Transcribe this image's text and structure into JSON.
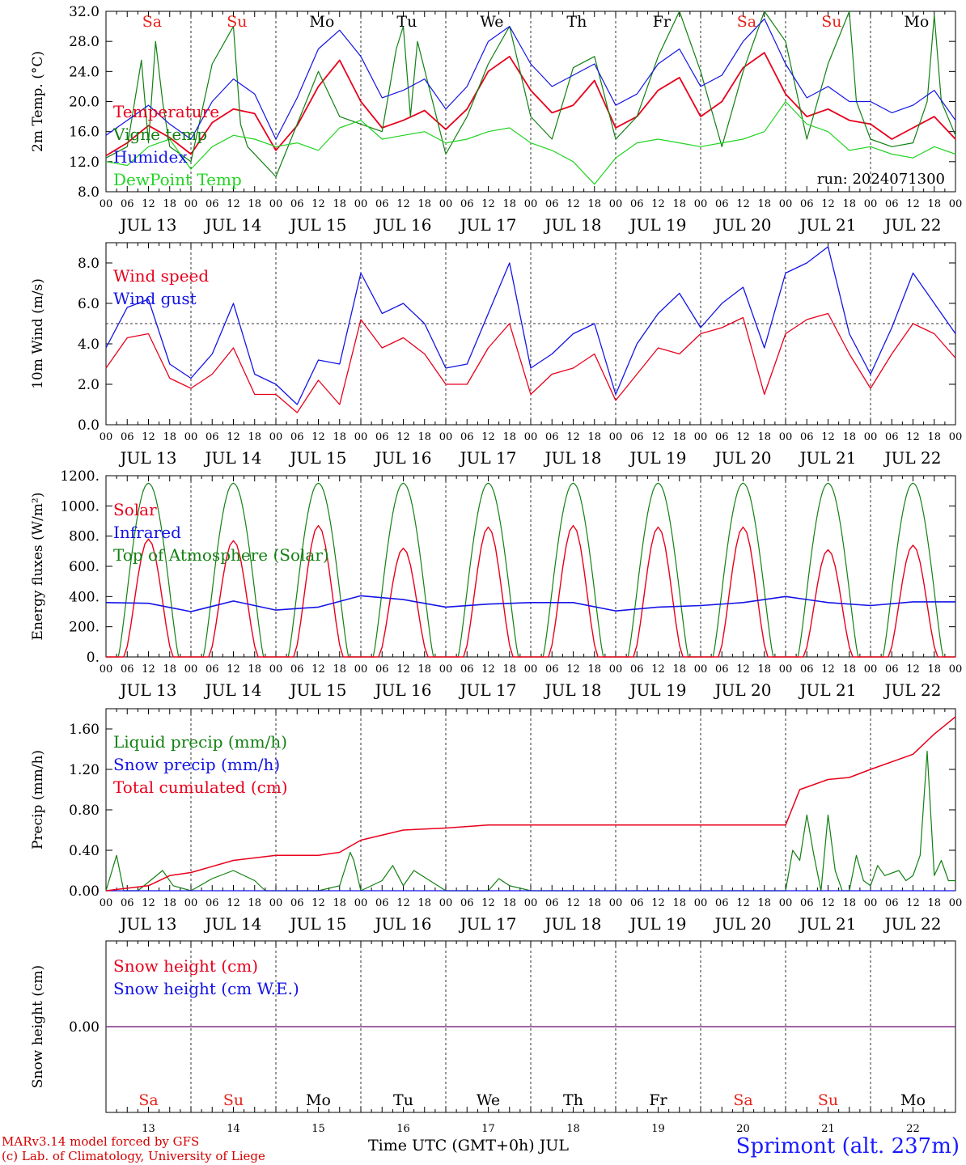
{
  "run_label": "run: 2024071300",
  "days": {
    "abbrev": [
      "Sa",
      "Su",
      "Mo",
      "Tu",
      "We",
      "Th",
      "Fr",
      "Sa",
      "Su",
      "Mo"
    ],
    "weekend_flags": [
      true,
      true,
      false,
      false,
      false,
      false,
      false,
      true,
      true,
      false
    ],
    "dates": [
      "JUL 13",
      "JUL 14",
      "JUL 15",
      "JUL 16",
      "JUL 17",
      "JUL 18",
      "JUL 19",
      "JUL 20",
      "JUL 21",
      "JUL 22"
    ],
    "day_numbers": [
      "13",
      "14",
      "15",
      "16",
      "17",
      "18",
      "19",
      "20",
      "21",
      "22"
    ],
    "hour_ticks": [
      "00",
      "06",
      "12",
      "18"
    ],
    "final_tick": "00"
  },
  "colors": {
    "weekend": "#e8231c",
    "weekday": "#000000",
    "red": "#e8001c",
    "blue": "#1414e6",
    "green": "#128012",
    "lightgreen": "#22d422",
    "purple": "#80308a"
  },
  "footer": {
    "line1": "MARv3.14 model forced by GFS",
    "line2": "(c) Lab. of Climatology, University of Liege",
    "xlabel": "Time UTC (GMT+0h) JUL",
    "station": "Sprimont (alt. 237m)"
  },
  "chart_data": [
    {
      "type": "line",
      "id": "temp",
      "ylabel": "2m Temp. (°C)",
      "ylim": [
        8,
        32
      ],
      "yticks": [
        "8.0",
        "12.0",
        "16.0",
        "20.0",
        "24.0",
        "28.0",
        "32.0"
      ],
      "x_unit": "hours since JUL 13 00 UTC",
      "legend": [
        "Temperature",
        "Vigne temp",
        "Humidex",
        "DewPoint Temp"
      ],
      "series": [
        {
          "name": "Temperature",
          "color": "red",
          "x": [
            0,
            6,
            12,
            18,
            24,
            30,
            36,
            42,
            48,
            54,
            60,
            66,
            72,
            78,
            84,
            90,
            96,
            102,
            108,
            114,
            120,
            126,
            132,
            138,
            144,
            150,
            156,
            162,
            168,
            174,
            180,
            186,
            192,
            198,
            204,
            210,
            216,
            222,
            228,
            234,
            240
          ],
          "values": [
            12.8,
            14.5,
            16.8,
            15.2,
            13.0,
            17.2,
            19.0,
            18.4,
            13.5,
            16.8,
            22.0,
            25.5,
            20.0,
            16.5,
            17.5,
            18.8,
            16.3,
            19.0,
            24.0,
            26.0,
            21.5,
            18.5,
            19.5,
            22.8,
            16.5,
            18.0,
            21.5,
            23.2,
            18.0,
            20.0,
            24.5,
            26.5,
            21.0,
            18.0,
            19.0,
            17.5,
            17.0,
            15.0,
            16.5,
            18.0,
            15.0
          ]
        },
        {
          "name": "Vigne temp",
          "color": "green",
          "x": [
            0,
            6,
            10,
            12,
            14,
            16,
            18,
            24,
            30,
            36,
            38,
            40,
            44,
            48,
            54,
            60,
            66,
            72,
            78,
            82,
            84,
            86,
            88,
            96,
            102,
            108,
            114,
            120,
            126,
            132,
            138,
            144,
            150,
            156,
            162,
            168,
            174,
            180,
            186,
            192,
            198,
            204,
            210,
            212,
            216,
            222,
            228,
            232,
            234,
            236,
            240
          ],
          "values": [
            12.5,
            14.0,
            25.5,
            14.5,
            28.0,
            20.0,
            14.0,
            12.0,
            25.0,
            30.0,
            17.0,
            14.0,
            12.0,
            10.0,
            17.0,
            24.0,
            18.0,
            17.0,
            16.0,
            27.0,
            30.0,
            18.0,
            28.0,
            13.0,
            18.0,
            25.0,
            30.0,
            18.0,
            15.0,
            24.5,
            26.0,
            15.0,
            18.0,
            26.0,
            32.0,
            24.0,
            14.0,
            24.0,
            32.0,
            28.0,
            15.0,
            25.0,
            32.0,
            20.0,
            15.0,
            14.0,
            14.5,
            20.0,
            31.5,
            20.0,
            15.5
          ]
        },
        {
          "name": "Humidex",
          "color": "blue",
          "x": [
            0,
            6,
            12,
            18,
            24,
            30,
            36,
            42,
            48,
            54,
            60,
            66,
            72,
            78,
            84,
            90,
            96,
            102,
            108,
            114,
            120,
            126,
            132,
            138,
            144,
            150,
            156,
            162,
            168,
            174,
            180,
            186,
            192,
            198,
            204,
            210,
            216,
            222,
            228,
            234,
            240
          ],
          "values": [
            15.5,
            17.5,
            19.5,
            17.0,
            15.0,
            20.0,
            23.0,
            21.0,
            15.0,
            20.5,
            27.0,
            29.5,
            26.0,
            20.5,
            21.5,
            23.0,
            19.0,
            22.0,
            28.0,
            30.0,
            25.0,
            22.0,
            23.5,
            25.0,
            19.5,
            21.0,
            25.0,
            27.0,
            22.0,
            23.5,
            28.0,
            31.0,
            25.0,
            20.5,
            22.0,
            20.0,
            20.0,
            18.5,
            19.5,
            21.5,
            17.5
          ]
        },
        {
          "name": "DewPoint Temp",
          "color": "lightgreen",
          "x": [
            0,
            6,
            12,
            18,
            24,
            30,
            36,
            42,
            48,
            54,
            60,
            66,
            72,
            78,
            84,
            90,
            96,
            102,
            108,
            114,
            120,
            126,
            132,
            138,
            144,
            150,
            156,
            162,
            168,
            174,
            180,
            186,
            192,
            198,
            204,
            210,
            216,
            222,
            228,
            234,
            240
          ],
          "values": [
            12.0,
            11.5,
            14.0,
            15.0,
            11.0,
            14.0,
            15.5,
            15.0,
            14.0,
            14.5,
            13.5,
            16.5,
            17.5,
            15.0,
            15.5,
            16.0,
            14.5,
            15.0,
            16.0,
            16.5,
            14.5,
            13.5,
            12.0,
            9.0,
            12.5,
            14.5,
            15.0,
            14.5,
            14.0,
            14.5,
            15.0,
            16.0,
            20.0,
            17.0,
            16.0,
            13.5,
            14.0,
            13.0,
            12.5,
            14.0,
            13.0
          ]
        }
      ]
    },
    {
      "type": "line",
      "id": "wind",
      "ylabel": "10m Wind (m/s)",
      "ylim": [
        0,
        9
      ],
      "yticks": [
        "0.0",
        "2.0",
        "4.0",
        "6.0",
        "8.0"
      ],
      "x_unit": "hours since JUL 13 00 UTC",
      "reference_line": 5.0,
      "legend": [
        "Wind speed",
        "Wind gust"
      ],
      "series": [
        {
          "name": "Wind speed",
          "color": "red",
          "x": [
            0,
            6,
            12,
            18,
            24,
            30,
            36,
            42,
            48,
            54,
            60,
            66,
            72,
            78,
            84,
            90,
            96,
            102,
            108,
            114,
            120,
            126,
            132,
            138,
            144,
            150,
            156,
            162,
            168,
            174,
            180,
            186,
            192,
            198,
            204,
            210,
            216,
            222,
            228,
            234,
            240
          ],
          "values": [
            2.8,
            4.3,
            4.5,
            2.3,
            1.8,
            2.5,
            3.8,
            1.5,
            1.5,
            0.6,
            2.2,
            1.0,
            5.2,
            3.8,
            4.3,
            3.5,
            2.0,
            2.0,
            3.8,
            5.0,
            1.5,
            2.5,
            2.8,
            3.5,
            1.2,
            2.5,
            3.8,
            3.5,
            4.5,
            4.8,
            5.3,
            1.5,
            4.5,
            5.2,
            5.5,
            3.5,
            1.8,
            3.5,
            5.0,
            4.5,
            3.3
          ]
        },
        {
          "name": "Wind gust",
          "color": "blue",
          "x": [
            0,
            6,
            12,
            18,
            24,
            30,
            36,
            42,
            48,
            54,
            60,
            66,
            72,
            78,
            84,
            90,
            96,
            102,
            108,
            114,
            120,
            126,
            132,
            138,
            144,
            150,
            156,
            162,
            168,
            174,
            180,
            186,
            192,
            198,
            204,
            210,
            216,
            222,
            228,
            234,
            240
          ],
          "values": [
            3.8,
            5.8,
            6.2,
            3.0,
            2.3,
            3.5,
            6.0,
            2.5,
            2.0,
            1.0,
            3.2,
            3.0,
            7.5,
            5.5,
            6.0,
            5.0,
            2.8,
            3.0,
            5.5,
            8.0,
            2.8,
            3.5,
            4.5,
            5.0,
            1.5,
            4.0,
            5.5,
            6.5,
            4.8,
            6.0,
            6.8,
            3.8,
            7.5,
            8.0,
            8.8,
            4.5,
            2.5,
            4.8,
            7.5,
            6.0,
            4.5
          ]
        }
      ]
    },
    {
      "type": "line",
      "id": "energy",
      "ylabel": "Energy fluxes (W/m²)",
      "ylim": [
        0,
        1200
      ],
      "yticks": [
        "0.",
        "200.",
        "400.",
        "600.",
        "800.",
        "1000.",
        "1200."
      ],
      "x_unit": "hours since JUL 13 00 UTC",
      "legend": [
        "Solar",
        "Infrared",
        "Top of Atmosphere (Solar)"
      ],
      "daily_peak_toa": 1150,
      "series": [
        {
          "name": "Solar",
          "color": "red",
          "daily_peaks": [
            780,
            770,
            870,
            720,
            860,
            870,
            860,
            860,
            710,
            740
          ]
        },
        {
          "name": "Infrared",
          "color": "blue",
          "x": [
            0,
            12,
            24,
            36,
            48,
            60,
            72,
            84,
            96,
            108,
            120,
            132,
            144,
            156,
            168,
            180,
            192,
            204,
            216,
            228,
            240
          ],
          "values": [
            360,
            355,
            300,
            370,
            310,
            330,
            405,
            380,
            330,
            350,
            360,
            360,
            305,
            330,
            340,
            360,
            400,
            360,
            340,
            365,
            365
          ]
        },
        {
          "name": "Top of Atmosphere (Solar)",
          "color": "green"
        }
      ]
    },
    {
      "type": "line",
      "id": "precip",
      "ylabel": "Precip (mm/h)",
      "ylim": [
        0,
        1.8
      ],
      "yticks": [
        "0.00",
        "0.40",
        "0.80",
        "1.20",
        "1.60"
      ],
      "x_unit": "hours since JUL 13 00 UTC",
      "legend": [
        "Liquid precip (mm/h)",
        "Snow precip (mm/h)",
        "Total cumulated (cm)"
      ],
      "series": [
        {
          "name": "Liquid precip (mm/h)",
          "color": "green",
          "x": [
            0,
            3,
            5,
            9,
            16,
            19,
            24,
            30,
            36,
            42,
            45,
            48,
            60,
            66,
            69,
            70,
            72,
            78,
            81,
            84,
            87,
            96,
            108,
            111,
            114,
            120,
            144,
            168,
            192,
            194,
            196,
            198,
            200,
            202,
            204,
            206,
            208,
            210,
            212,
            214,
            216,
            218,
            220,
            224,
            226,
            228,
            230,
            232,
            234,
            236,
            238,
            240
          ],
          "values": [
            0,
            0.35,
            0,
            0,
            0.2,
            0.05,
            0,
            0.12,
            0.2,
            0.1,
            0,
            0,
            0,
            0.05,
            0.38,
            0.3,
            0,
            0.1,
            0.25,
            0.05,
            0.2,
            0,
            0,
            0.12,
            0.05,
            0,
            0,
            0,
            0,
            0.4,
            0.3,
            0.75,
            0.35,
            0,
            0.75,
            0.2,
            0,
            0,
            0.35,
            0.1,
            0.05,
            0.25,
            0.15,
            0.2,
            0.1,
            0.15,
            0.35,
            1.38,
            0.15,
            0.3,
            0.1,
            0.1
          ]
        },
        {
          "name": "Snow precip (mm/h)",
          "color": "blue",
          "x": [
            0,
            240
          ],
          "values": [
            0,
            0
          ]
        },
        {
          "name": "Total cumulated (cm)",
          "color": "red",
          "x": [
            0,
            12,
            18,
            24,
            36,
            48,
            60,
            66,
            72,
            84,
            96,
            108,
            120,
            144,
            168,
            186,
            192,
            196,
            204,
            210,
            216,
            228,
            234,
            240
          ],
          "values": [
            0,
            0.05,
            0.15,
            0.18,
            0.3,
            0.35,
            0.35,
            0.38,
            0.5,
            0.6,
            0.62,
            0.65,
            0.65,
            0.65,
            0.65,
            0.65,
            0.65,
            1.0,
            1.1,
            1.12,
            1.2,
            1.35,
            1.55,
            1.72
          ]
        }
      ]
    },
    {
      "type": "line",
      "id": "snow",
      "ylabel": "Snow height (cm)",
      "ylim": [
        -1,
        1
      ],
      "yticks": [
        "0.00"
      ],
      "x_unit": "hours since JUL 13 00 UTC",
      "legend": [
        "Snow height (cm)",
        "Snow height (cm W.E.)"
      ],
      "series": [
        {
          "name": "Snow height (cm)",
          "color": "red",
          "x": [
            0,
            240
          ],
          "values": [
            0,
            0
          ]
        },
        {
          "name": "Snow height (cm W.E.)",
          "color": "blue",
          "x": [
            0,
            240
          ],
          "values": [
            0,
            0
          ]
        }
      ]
    }
  ]
}
